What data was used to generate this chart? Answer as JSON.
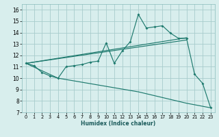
{
  "xlabel": "Humidex (Indice chaleur)",
  "bg_color": "#d8eeed",
  "grid_color": "#a8cccc",
  "line_color": "#1e7a6e",
  "xlim": [
    -0.5,
    23.5
  ],
  "ylim": [
    7,
    16.5
  ],
  "xticks": [
    0,
    1,
    2,
    3,
    4,
    5,
    6,
    7,
    8,
    9,
    10,
    11,
    12,
    13,
    14,
    15,
    16,
    17,
    18,
    19,
    20,
    21,
    22,
    23
  ],
  "yticks": [
    7,
    8,
    9,
    10,
    11,
    12,
    13,
    14,
    15,
    16
  ],
  "main_x": [
    0,
    1,
    2,
    3,
    4,
    5,
    6,
    7,
    8,
    9,
    10,
    11,
    12,
    13,
    14,
    15,
    16,
    17,
    18,
    19,
    20,
    21,
    22,
    23
  ],
  "main_y": [
    11.3,
    11.1,
    10.5,
    10.2,
    10.0,
    11.0,
    11.1,
    11.2,
    11.4,
    11.5,
    13.1,
    11.3,
    12.4,
    13.2,
    15.6,
    14.4,
    14.5,
    14.6,
    13.95,
    13.5,
    13.5,
    10.35,
    9.55,
    7.4
  ],
  "env_bot_x": [
    0,
    4,
    14,
    20,
    23
  ],
  "env_bot_y": [
    11.3,
    10.0,
    8.8,
    7.8,
    7.4
  ],
  "line1_x": [
    0,
    20
  ],
  "line1_y": [
    11.3,
    13.55
  ],
  "line2_x": [
    0,
    20
  ],
  "line2_y": [
    11.3,
    13.35
  ]
}
